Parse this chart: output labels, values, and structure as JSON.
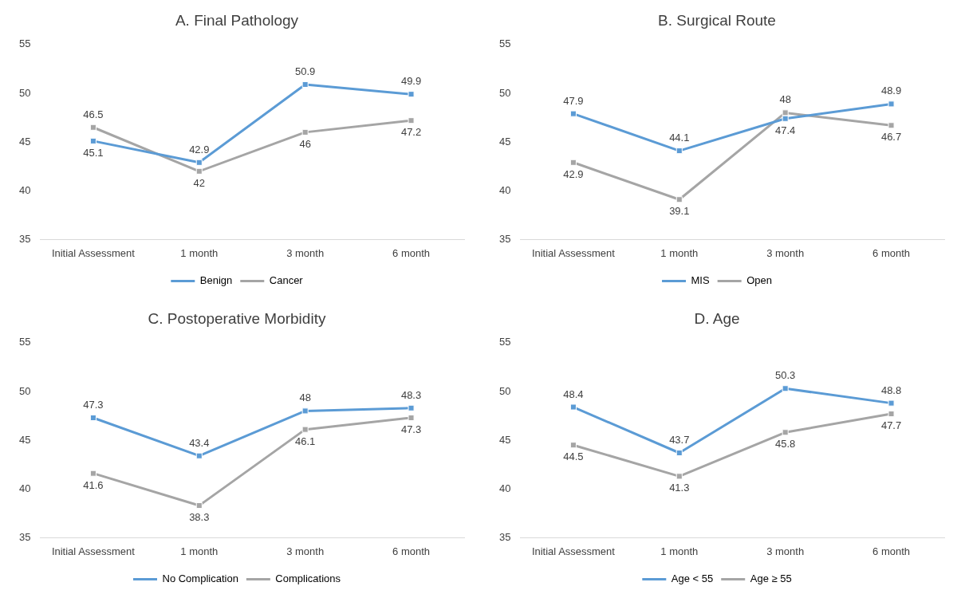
{
  "chart_data": [
    {
      "type": "line",
      "title": "A. Final Pathology",
      "categories": [
        "Initial Assessment",
        "1 month",
        "3 month",
        "6 month"
      ],
      "series": [
        {
          "name": "Benign",
          "color": "#5b9bd5",
          "values": [
            45.1,
            42.9,
            50.9,
            49.9
          ]
        },
        {
          "name": "Cancer",
          "color": "#a5a5a5",
          "values": [
            46.5,
            42,
            46,
            47.2
          ]
        }
      ],
      "ylim": [
        35,
        55
      ],
      "yticks": [
        35,
        40,
        45,
        50,
        55
      ],
      "grid": false,
      "legend": "bottom",
      "marker": "square",
      "data_labels": true
    },
    {
      "type": "line",
      "title": "B. Surgical Route",
      "categories": [
        "Initial Assessment",
        "1 month",
        "3 month",
        "6 month"
      ],
      "series": [
        {
          "name": "MIS",
          "color": "#5b9bd5",
          "values": [
            47.9,
            44.1,
            47.4,
            48.9
          ]
        },
        {
          "name": "Open",
          "color": "#a5a5a5",
          "values": [
            42.9,
            39.1,
            48,
            46.7
          ]
        }
      ],
      "ylim": [
        35,
        55
      ],
      "yticks": [
        35,
        40,
        45,
        50,
        55
      ],
      "grid": false,
      "legend": "bottom",
      "marker": "square",
      "data_labels": true
    },
    {
      "type": "line",
      "title": "C. Postoperative Morbidity",
      "categories": [
        "Initial Assessment",
        "1 month",
        "3 month",
        "6 month"
      ],
      "series": [
        {
          "name": "No Complication",
          "color": "#5b9bd5",
          "values": [
            47.3,
            43.4,
            48,
            48.3
          ]
        },
        {
          "name": "Complications",
          "color": "#a5a5a5",
          "values": [
            41.6,
            38.3,
            46.1,
            47.3
          ]
        }
      ],
      "ylim": [
        35,
        55
      ],
      "yticks": [
        35,
        40,
        45,
        50,
        55
      ],
      "grid": false,
      "legend": "bottom",
      "marker": "square",
      "data_labels": true
    },
    {
      "type": "line",
      "title": "D. Age",
      "categories": [
        "Initial Assessment",
        "1 month",
        "3 month",
        "6 month"
      ],
      "series": [
        {
          "name": "Age < 55",
          "color": "#5b9bd5",
          "values": [
            48.4,
            43.7,
            50.3,
            48.8
          ]
        },
        {
          "name": "Age ≥ 55",
          "color": "#a5a5a5",
          "values": [
            44.5,
            41.3,
            45.8,
            47.7
          ]
        }
      ],
      "ylim": [
        35,
        55
      ],
      "yticks": [
        35,
        40,
        45,
        50,
        55
      ],
      "grid": false,
      "legend": "bottom",
      "marker": "square",
      "data_labels": true
    }
  ]
}
